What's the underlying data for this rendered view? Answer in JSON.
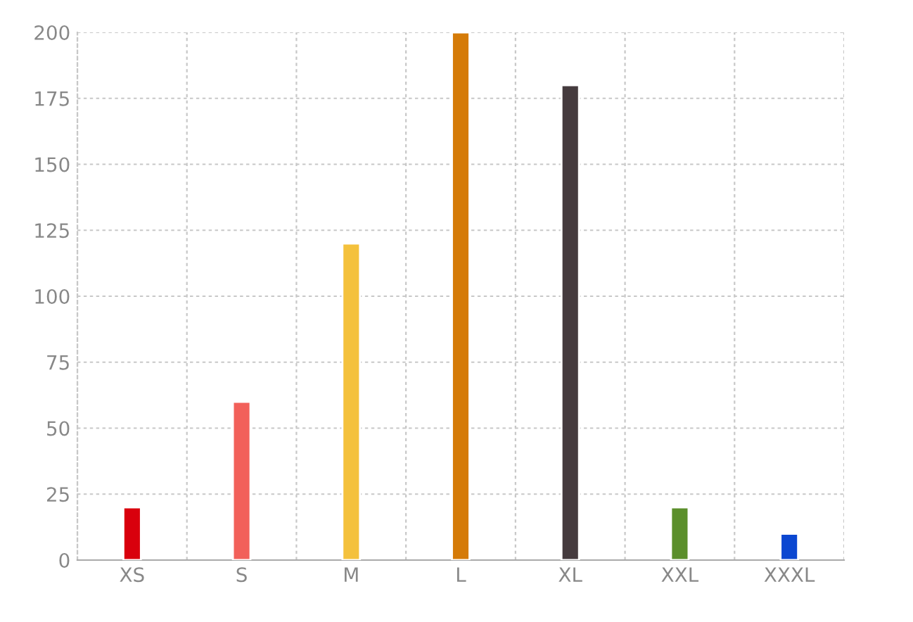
{
  "chart_data": {
    "type": "bar",
    "categories": [
      "XS",
      "S",
      "M",
      "L",
      "XL",
      "XXL",
      "XXXL"
    ],
    "values": [
      20,
      60,
      120,
      200,
      180,
      20,
      10
    ],
    "colors": [
      "#d9000d",
      "#f2605a",
      "#f4c13c",
      "#d57b08",
      "#453b3e",
      "#5b8f2b",
      "#0b47d1"
    ],
    "ylim": [
      0,
      200
    ],
    "yticks": [
      0,
      25,
      50,
      75,
      100,
      125,
      150,
      175,
      200
    ],
    "grid": true
  }
}
